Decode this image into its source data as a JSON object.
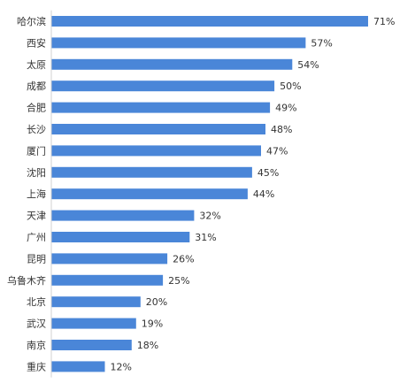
{
  "chart_data": {
    "type": "bar",
    "orientation": "horizontal",
    "categories": [
      "哈尔滨",
      "西安",
      "太原",
      "成都",
      "合肥",
      "长沙",
      "厦门",
      "沈阳",
      "上海",
      "天津",
      "广州",
      "昆明",
      "乌鲁木齐",
      "北京",
      "武汉",
      "南京",
      "重庆"
    ],
    "values": [
      71,
      57,
      54,
      50,
      49,
      48,
      47,
      45,
      44,
      32,
      31,
      26,
      25,
      20,
      19,
      18,
      12
    ],
    "value_labels": [
      "71%",
      "57%",
      "54%",
      "50%",
      "49%",
      "48%",
      "47%",
      "45%",
      "44%",
      "32%",
      "31%",
      "26%",
      "25%",
      "20%",
      "19%",
      "18%",
      "12%"
    ],
    "unit": "%",
    "xlim": [
      0,
      71
    ],
    "grid": false,
    "legend": "none",
    "bar_color": "#4a86d8"
  }
}
